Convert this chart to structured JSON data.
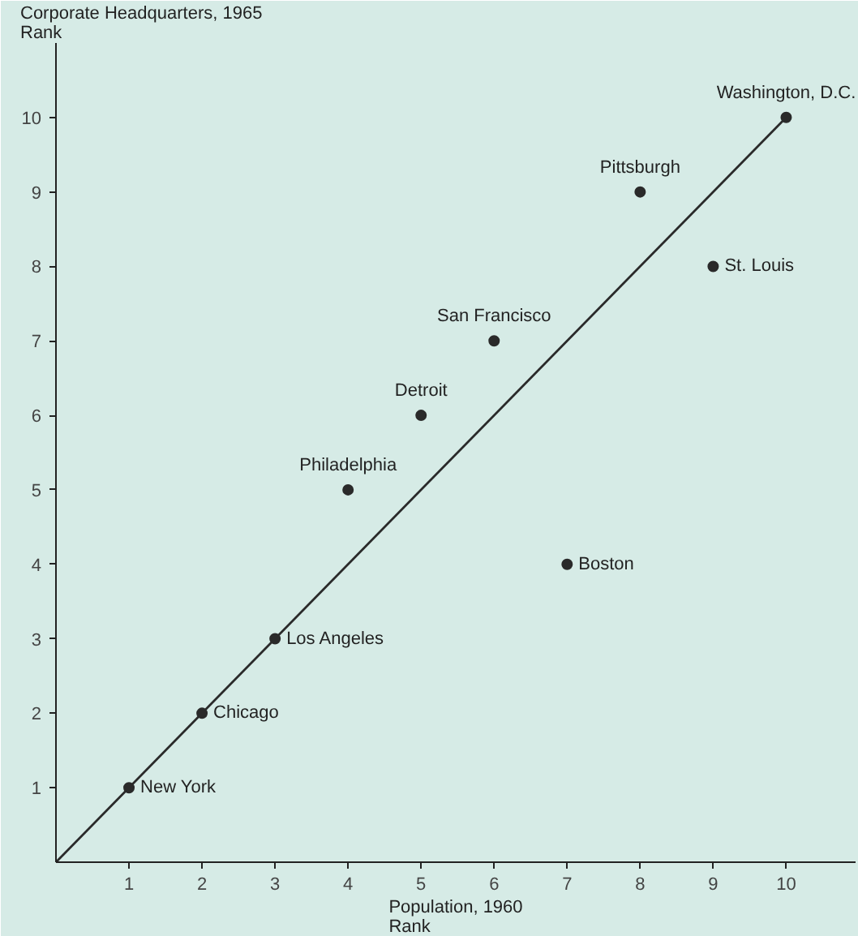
{
  "chart_data": {
    "type": "scatter",
    "xlabel": "Population, 1960\nRank",
    "ylabel": "Corporate Headquarters, 1965\nRank",
    "xlim": [
      0,
      10.95
    ],
    "ylim": [
      0,
      11
    ],
    "xticks": [
      1,
      2,
      3,
      4,
      5,
      6,
      7,
      8,
      9,
      10
    ],
    "yticks": [
      1,
      2,
      3,
      4,
      5,
      6,
      7,
      8,
      9,
      10
    ],
    "grid": false,
    "marker": "circle",
    "series": [
      {
        "type": "line",
        "color": "#2a2a2a",
        "x": [
          0,
          10
        ],
        "values": [
          0,
          10
        ],
        "marker": "none"
      },
      {
        "color": "#2a2a2a",
        "x": [
          1,
          2,
          3,
          4,
          5,
          6,
          7,
          8,
          9,
          10
        ],
        "values": [
          1,
          2,
          3,
          5,
          6,
          7,
          4,
          9,
          8,
          10
        ]
      }
    ],
    "annotations": [
      {
        "text": "New York",
        "x": 1,
        "y": 1
      },
      {
        "text": "Chicago",
        "x": 2,
        "y": 2
      },
      {
        "text": "Los Angeles",
        "x": 3,
        "y": 3
      },
      {
        "text": "Philadelphia",
        "x": 4,
        "y": 5
      },
      {
        "text": "Detroit",
        "x": 5,
        "y": 6
      },
      {
        "text": "San Francisco",
        "x": 6,
        "y": 7
      },
      {
        "text": "Boston",
        "x": 7,
        "y": 4
      },
      {
        "text": "Pittsburgh",
        "x": 8,
        "y": 9
      },
      {
        "text": "St. Louis",
        "x": 9,
        "y": 8
      },
      {
        "text": "Washington, D.C.",
        "x": 10,
        "y": 10
      }
    ]
  }
}
